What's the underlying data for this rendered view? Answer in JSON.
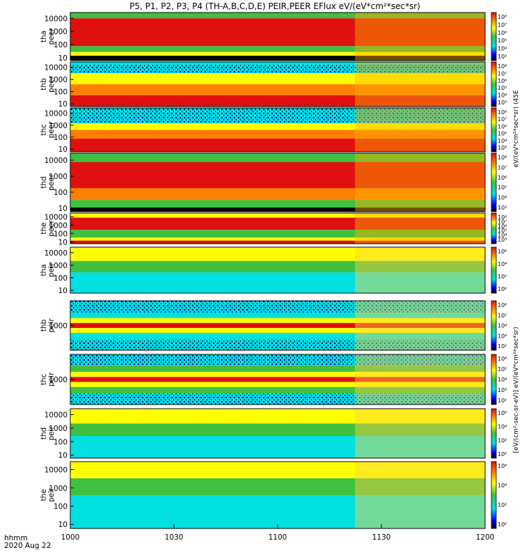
{
  "title": "P5, P1, P2, P3, P4 (TH-A,B,C,D,E) PEIR,PEER EFlux eV/(eV*cm²*sec*sr)",
  "chart_data": [
    {
      "type": "heatmap",
      "panel": "tha-peer",
      "ylabel": [
        "tha",
        "peer"
      ],
      "ytick_labels": [
        "10000",
        "1000",
        "100",
        "10"
      ],
      "colorbar_ticks": [
        "10⁸",
        "10⁷",
        "10⁶",
        "10⁵",
        "10⁴",
        "10³"
      ]
    },
    {
      "type": "heatmap",
      "panel": "thb-peer",
      "ylabel": [
        "thb",
        "peer"
      ],
      "ytick_labels": [
        "10000",
        "1000",
        "100",
        "10"
      ],
      "colorbar_ticks": [
        "10⁸",
        "10⁷",
        "10⁶",
        "10⁵",
        "10⁴",
        "10³"
      ]
    },
    {
      "type": "heatmap",
      "panel": "thc-peer",
      "ylabel": [
        "thc",
        "peer"
      ],
      "ytick_labels": [
        "10000",
        "1000",
        "100",
        "10"
      ],
      "colorbar_ticks": [
        "10⁸",
        "10⁷",
        "10⁶",
        "10⁵",
        "10⁴",
        "10³"
      ]
    },
    {
      "type": "heatmap",
      "panel": "thd-peer",
      "ylabel": [
        "thd",
        "peer"
      ],
      "ytick_labels": [
        "10000",
        "1000",
        "100",
        "10"
      ],
      "colorbar_ticks": [
        "10⁸",
        "10⁷",
        "10⁶",
        "10⁵",
        "10⁴",
        "10³"
      ]
    },
    {
      "type": "heatmap",
      "panel": "the-peer",
      "ylabel": [
        "the",
        "peer"
      ],
      "ytick_labels": [
        "10000",
        "1000",
        "100",
        "10"
      ],
      "colorbar_ticks": [
        "10⁸",
        "10⁷",
        "10⁶",
        "10⁵",
        "10⁴",
        "10³"
      ]
    },
    {
      "type": "heatmap",
      "panel": "tha-peir",
      "ylabel": [
        "tha",
        "peir"
      ],
      "ytick_labels": [
        "10000",
        "1000",
        "100",
        "10"
      ],
      "colorbar_ticks": [
        "10⁶",
        "10⁴",
        "10²",
        "10⁰"
      ]
    },
    {
      "type": "heatmap",
      "panel": "thb-peir",
      "ylabel": [
        "thb",
        "peir"
      ],
      "ytick_labels": [
        "1000"
      ],
      "colorbar_ticks": [
        "10⁶",
        "10⁵",
        "10⁴",
        "10³",
        "10²"
      ]
    },
    {
      "type": "heatmap",
      "panel": "thc-peir",
      "ylabel": [
        "thc",
        "peir"
      ],
      "ytick_labels": [
        "1000"
      ],
      "colorbar_ticks": [
        "10⁶",
        "10⁵",
        "10⁴",
        "10³",
        "10²"
      ]
    },
    {
      "type": "heatmap",
      "panel": "thd-peir",
      "ylabel": [
        "thd",
        "peir"
      ],
      "ytick_labels": [
        "10000",
        "1000",
        "100",
        "10"
      ],
      "colorbar_ticks": [
        "10⁶",
        "10⁴",
        "10²",
        "10⁰"
      ]
    },
    {
      "type": "heatmap",
      "panel": "the-peir",
      "ylabel": [
        "the",
        "peir"
      ],
      "ytick_labels": [
        "10000",
        "1000",
        "100",
        "10"
      ],
      "colorbar_ticks": [
        "10⁶",
        "10⁴",
        "10²",
        "10⁰"
      ]
    }
  ],
  "x_axis": {
    "tick_labels": [
      "1000",
      "1030",
      "1100",
      "1130",
      "1200"
    ],
    "label_line1": "hhmm",
    "label_line2": "2020 Aug 22"
  },
  "colorbar_label_peer": "eV/(eV*cm²*sec*sr) (45E",
  "colorbar_label_peir": "[eV/(cm²-sec-sr-eV)] eV/(eV*cm²*sec*sr)",
  "colors": {
    "red": "#e01010",
    "orange": "#ff7f00",
    "yellow": "#ffff00",
    "green": "#40c040",
    "cyan": "#00e0e0",
    "blue": "#0000ff",
    "black": "#000000"
  }
}
